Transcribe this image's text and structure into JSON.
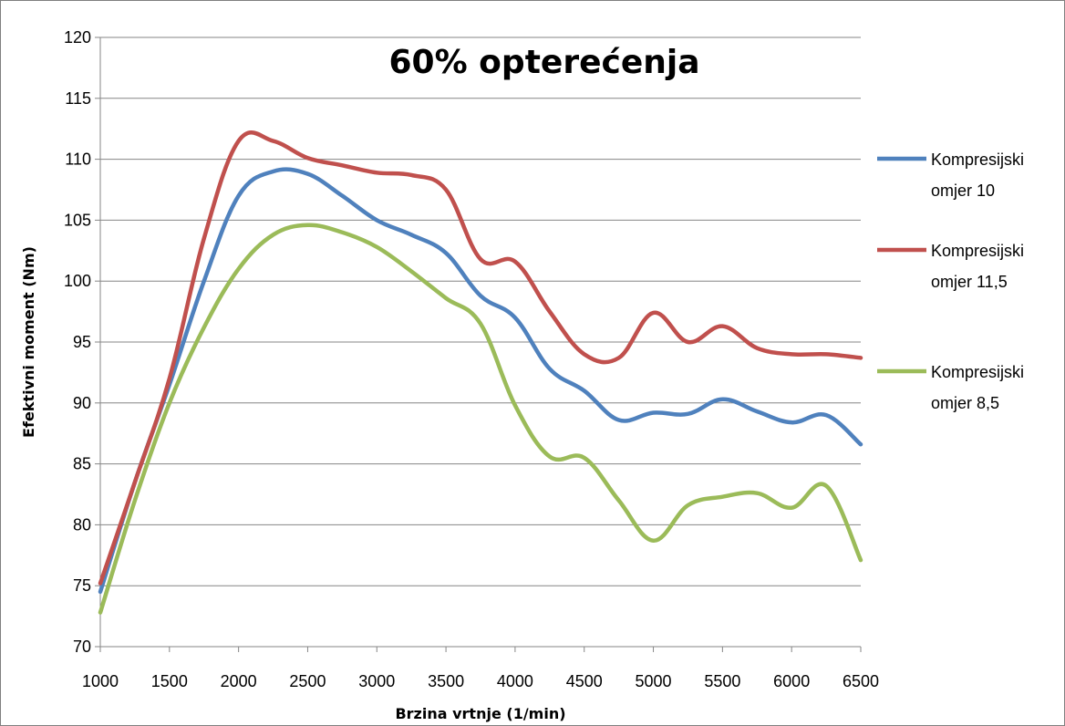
{
  "chart_data": {
    "type": "line",
    "title": "60% opterećenja",
    "xlabel": "Brzina vrtnje (1/min)",
    "ylabel": "Efektivni moment (Nm)",
    "xlim": [
      1000,
      6500
    ],
    "ylim": [
      70,
      120
    ],
    "xticks": [
      1000,
      1500,
      2000,
      2500,
      3000,
      3500,
      4000,
      4500,
      5000,
      5500,
      6000,
      6500
    ],
    "yticks": [
      70,
      75,
      80,
      85,
      90,
      95,
      100,
      105,
      110,
      115,
      120
    ],
    "grid": "horizontal",
    "legend_position": "right",
    "series": [
      {
        "name_lines": [
          "Kompresijski",
          "omjer 10"
        ],
        "color": "#4f81bd",
        "x": [
          1000,
          1250,
          1500,
          1750,
          2000,
          2250,
          2500,
          2750,
          3000,
          3250,
          3500,
          3750,
          4000,
          4250,
          4500,
          4750,
          5000,
          5250,
          5500,
          5750,
          6000,
          6250,
          6500
        ],
        "y": [
          74.5,
          83.5,
          91.5,
          100.0,
          107.0,
          109.0,
          108.8,
          107.0,
          105.0,
          103.8,
          102.3,
          98.8,
          97.0,
          92.8,
          91.0,
          88.6,
          89.2,
          89.1,
          90.3,
          89.3,
          88.4,
          89.0,
          86.6
        ]
      },
      {
        "name_lines": [
          "Kompresijski",
          "omjer 11,5"
        ],
        "color": "#c0504d",
        "x": [
          1000,
          1250,
          1500,
          1750,
          2000,
          2250,
          2500,
          2750,
          3000,
          3250,
          3500,
          3750,
          4000,
          4250,
          4500,
          4750,
          5000,
          5250,
          5500,
          5750,
          6000,
          6250,
          6500
        ],
        "y": [
          75.2,
          83.5,
          92.0,
          103.5,
          111.5,
          111.5,
          110.1,
          109.5,
          108.9,
          108.7,
          107.5,
          101.8,
          101.6,
          97.5,
          94.0,
          93.7,
          97.4,
          95.0,
          96.3,
          94.5,
          94.0,
          94.0,
          93.7
        ]
      },
      {
        "name_lines": [
          "Kompresijski",
          "omjer 8,5"
        ],
        "color": "#9bbb59",
        "x": [
          1000,
          1250,
          1500,
          1750,
          2000,
          2250,
          2500,
          2750,
          3000,
          3250,
          3500,
          3750,
          4000,
          4250,
          4500,
          4750,
          5000,
          5250,
          5500,
          5750,
          6000,
          6250,
          6500
        ],
        "y": [
          72.8,
          82.0,
          90.0,
          96.2,
          101.0,
          103.8,
          104.6,
          104.0,
          102.8,
          100.8,
          98.6,
          96.5,
          89.8,
          85.6,
          85.5,
          82.0,
          78.7,
          81.6,
          82.3,
          82.6,
          81.4,
          83.2,
          77.1
        ]
      }
    ]
  }
}
